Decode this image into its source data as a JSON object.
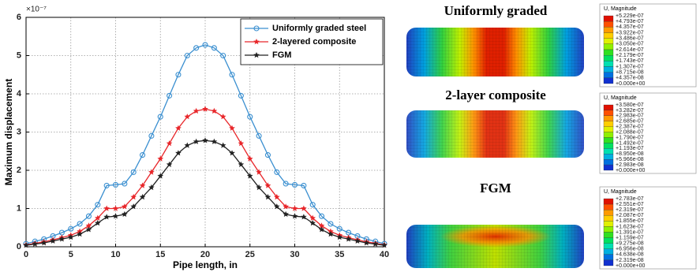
{
  "chart_data": {
    "type": "line",
    "x_label": "Pipe length, in",
    "y_label": "Maximum displacement",
    "y_multiplier": "×10⁻⁷",
    "x": [
      0,
      1,
      2,
      3,
      4,
      5,
      6,
      7,
      8,
      9,
      10,
      11,
      12,
      13,
      14,
      15,
      16,
      17,
      18,
      19,
      20,
      21,
      22,
      23,
      24,
      25,
      26,
      27,
      28,
      29,
      30,
      31,
      32,
      33,
      34,
      35,
      36,
      37,
      38,
      39,
      40
    ],
    "series": [
      {
        "name": "Uniformly graded steel",
        "color": "#3a8fd0",
        "marker": "circle",
        "values": [
          0.08,
          0.14,
          0.2,
          0.28,
          0.37,
          0.47,
          0.6,
          0.8,
          1.1,
          1.6,
          1.62,
          1.65,
          1.95,
          2.4,
          2.9,
          3.4,
          3.95,
          4.5,
          5.0,
          5.2,
          5.28,
          5.2,
          5.0,
          4.5,
          3.95,
          3.4,
          2.9,
          2.4,
          1.95,
          1.65,
          1.62,
          1.6,
          1.1,
          0.8,
          0.6,
          0.47,
          0.37,
          0.28,
          0.2,
          0.14,
          0.08
        ]
      },
      {
        "name": "2-layered composite",
        "color": "#e8262a",
        "marker": "star",
        "values": [
          0.05,
          0.09,
          0.13,
          0.18,
          0.24,
          0.3,
          0.4,
          0.55,
          0.75,
          1.0,
          1.0,
          1.05,
          1.3,
          1.6,
          1.95,
          2.3,
          2.7,
          3.1,
          3.4,
          3.55,
          3.6,
          3.55,
          3.4,
          3.1,
          2.7,
          2.3,
          1.95,
          1.6,
          1.3,
          1.05,
          1.0,
          1.0,
          0.75,
          0.55,
          0.4,
          0.3,
          0.24,
          0.18,
          0.13,
          0.09,
          0.05
        ]
      },
      {
        "name": "FGM",
        "color": "#222222",
        "marker": "star",
        "values": [
          0.04,
          0.07,
          0.1,
          0.15,
          0.2,
          0.25,
          0.33,
          0.45,
          0.62,
          0.78,
          0.8,
          0.85,
          1.05,
          1.3,
          1.55,
          1.85,
          2.15,
          2.45,
          2.65,
          2.75,
          2.78,
          2.75,
          2.65,
          2.45,
          2.15,
          1.85,
          1.55,
          1.3,
          1.05,
          0.85,
          0.8,
          0.78,
          0.62,
          0.45,
          0.33,
          0.25,
          0.2,
          0.15,
          0.1,
          0.07,
          0.04
        ]
      }
    ],
    "xlim": [
      0,
      40
    ],
    "ylim": [
      0,
      6
    ],
    "xticks": [
      0,
      5,
      10,
      15,
      20,
      25,
      30,
      35,
      40
    ],
    "yticks": [
      0,
      1,
      2,
      3,
      4,
      5,
      6
    ],
    "grid": true,
    "legend": "upper right"
  },
  "contours": [
    {
      "title": "Uniformly graded",
      "legend_title": "U, Magnitude",
      "levels": [
        "+5.229e-07",
        "+4.793e-07",
        "+4.357e-07",
        "+3.922e-07",
        "+3.486e-07",
        "+3.050e-07",
        "+2.614e-07",
        "+2.179e-07",
        "+1.743e-07",
        "+1.307e-07",
        "+8.715e-08",
        "+4.357e-08",
        "+0.000e+00"
      ]
    },
    {
      "title": "2-layer composite",
      "legend_title": "U, Magnitude",
      "levels": [
        "+3.580e-07",
        "+3.282e-07",
        "+2.983e-07",
        "+2.685e-07",
        "+2.387e-07",
        "+2.088e-07",
        "+1.790e-07",
        "+1.492e-07",
        "+1.193e-07",
        "+8.950e-08",
        "+5.966e-08",
        "+2.983e-08",
        "+0.000e+00"
      ]
    },
    {
      "title": "FGM",
      "legend_title": "U, Magnitude",
      "levels": [
        "+2.783e-07",
        "+2.551e-07",
        "+2.319e-07",
        "+2.087e-07",
        "+1.855e-07",
        "+1.623e-07",
        "+1.391e-07",
        "+1.159e-07",
        "+9.275e-08",
        "+6.956e-08",
        "+4.638e-08",
        "+2.319e-08",
        "+0.000e+00"
      ]
    }
  ]
}
